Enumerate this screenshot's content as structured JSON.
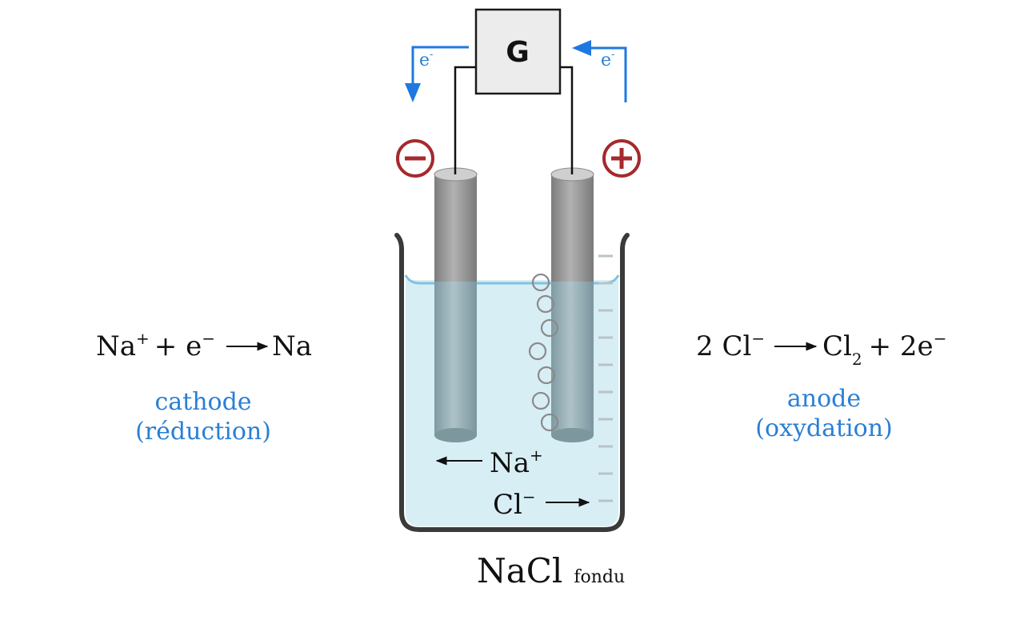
{
  "generator": {
    "label": "G"
  },
  "electron_flow": {
    "left_label": "e",
    "right_label": "e",
    "superscript": "-"
  },
  "electrode_signs": {
    "cathode_sign": "−",
    "anode_sign": "+"
  },
  "cathode": {
    "eq_species": "Na",
    "eq_charge": "+",
    "eq_plus": "+ e",
    "eq_e_charge": "−",
    "eq_product": "Na",
    "name": "cathode",
    "process": "(réduction)"
  },
  "anode": {
    "eq_coef": "2 Cl",
    "eq_charge": "−",
    "eq_product": "Cl",
    "eq_subscript": "2",
    "eq_plus": "+ 2e",
    "eq_e_charge": "−",
    "name": "anode",
    "process": "(oxydation)"
  },
  "ions": {
    "cation": "Na",
    "cation_charge": "+",
    "anion": "Cl",
    "anion_charge": "−"
  },
  "electrolyte": {
    "formula": "NaCl",
    "state": "fondu"
  },
  "colors": {
    "electron_arrow": "#1f78e0",
    "sign": "#a5292d",
    "solution_fill": "#d8eef5",
    "solution_line": "#7fc3e0",
    "electrode_gray": "#9a9a9a",
    "beaker_stroke": "#3a3a3a",
    "label_blue": "#2a7fd4"
  }
}
